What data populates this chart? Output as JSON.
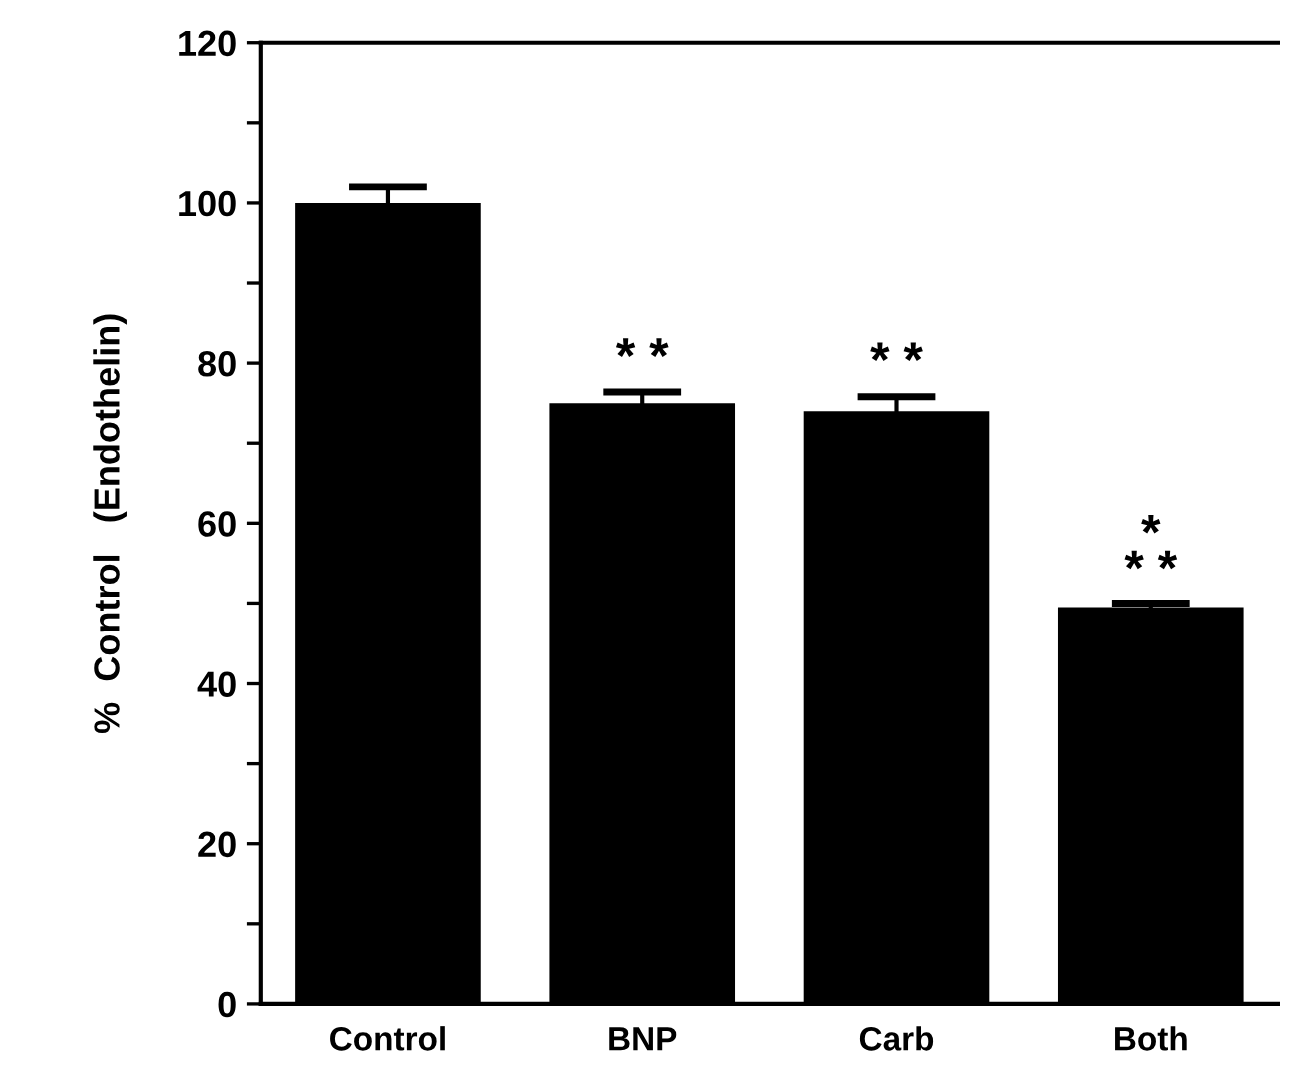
{
  "chart_data": {
    "type": "bar",
    "ylabel": "%  Control   (Endothelin)",
    "categories": [
      "Control",
      "BNP",
      "Carb",
      "Both"
    ],
    "values": [
      100,
      75,
      74,
      49.5
    ],
    "errors": [
      2,
      1.4,
      1.8,
      0.5
    ],
    "color": "#000000",
    "ylim": [
      0,
      120
    ],
    "yticks": [
      0,
      20,
      40,
      60,
      80,
      100,
      120,
      {
        "value": 10,
        "label": null
      },
      {
        "value": 30,
        "label": null
      },
      {
        "value": 50,
        "label": null
      },
      {
        "value": 70,
        "label": null
      },
      {
        "value": 90,
        "label": null
      },
      {
        "value": 110,
        "label": null
      }
    ],
    "grid": false,
    "annotations": [
      {
        "text": "* *",
        "x": "BNP",
        "y": 77.5
      },
      {
        "text": "* *",
        "x": "Carb",
        "y": 77
      },
      {
        "text": "*\n* *",
        "x": "Both",
        "y": 51
      }
    ]
  }
}
